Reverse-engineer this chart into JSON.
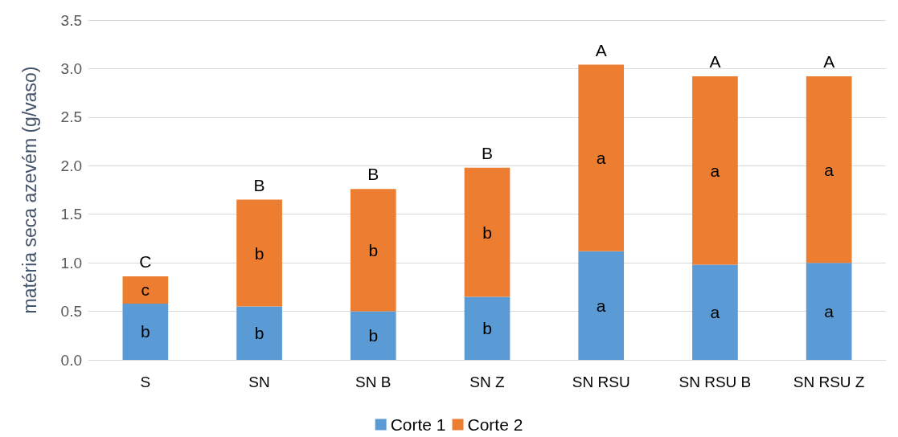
{
  "chart_data": {
    "type": "bar",
    "stacked": true,
    "ylabel": "matéria seca azevém (g/vaso)",
    "categories": [
      "S",
      "SN",
      "SN B",
      "SN Z",
      "SN RSU",
      "SN RSU B",
      "SN RSU Z"
    ],
    "series": [
      {
        "name": "Corte 1",
        "color": "#5b9bd5",
        "values": [
          0.58,
          0.55,
          0.5,
          0.65,
          1.12,
          0.98,
          1.0
        ],
        "value_labels": [
          "b",
          "b",
          "b",
          "b",
          "a",
          "a",
          "a"
        ]
      },
      {
        "name": "Corte 2",
        "color": "#ed7d31",
        "values": [
          0.28,
          1.1,
          1.26,
          1.33,
          1.92,
          1.94,
          1.92
        ],
        "value_labels": [
          "c",
          "b",
          "b",
          "b",
          "a",
          "a",
          "a"
        ]
      }
    ],
    "annotations": [
      {
        "text": "C",
        "x": "S",
        "y": 0.86
      },
      {
        "text": "B",
        "x": "SN",
        "y": 1.65
      },
      {
        "text": "B",
        "x": "SN B",
        "y": 1.76
      },
      {
        "text": "B",
        "x": "SN Z",
        "y": 1.98
      },
      {
        "text": "A",
        "x": "SN RSU",
        "y": 3.04
      },
      {
        "text": "A",
        "x": "SN RSU B",
        "y": 2.92
      },
      {
        "text": "A",
        "x": "SN RSU Z",
        "y": 2.92
      }
    ],
    "ylim": [
      0,
      3.5
    ],
    "yticks": [
      {
        "value": 0,
        "label": "0.0"
      },
      0.5,
      {
        "value": 1,
        "label": "1.0"
      },
      1.5,
      {
        "value": 2,
        "label": "2.0"
      },
      2.5,
      {
        "value": 3,
        "label": "3.0"
      },
      3.5
    ],
    "grid": "y",
    "legend": "bottom"
  }
}
